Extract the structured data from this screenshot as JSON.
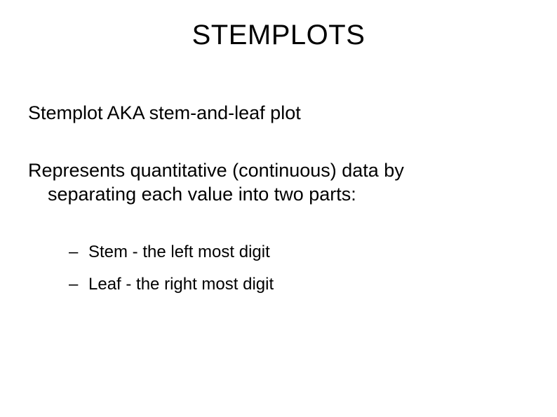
{
  "slide": {
    "title": "STEMPLOTS",
    "para1": "Stemplot AKA stem-and-leaf plot",
    "para2_line1": "Represents quantitative (continuous) data by",
    "para2_line2": "separating each value into two parts:",
    "bullets": {
      "b1": "Stem - the left most digit",
      "b2": "Leaf - the right most digit"
    }
  },
  "style": {
    "background_color": "#ffffff",
    "text_color": "#000000",
    "title_fontsize": 40,
    "body_fontsize": 27,
    "bullet_fontsize": 24,
    "font_family": "Arial"
  }
}
